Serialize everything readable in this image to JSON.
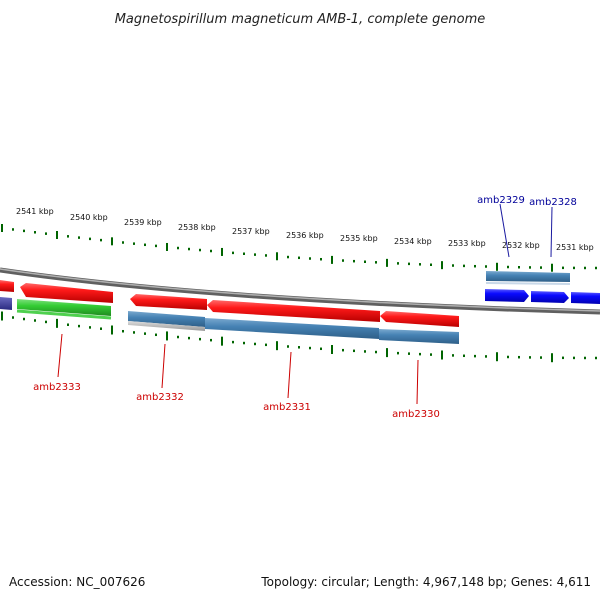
{
  "title": "Magnetospirillum magneticum AMB-1, complete genome",
  "ruler_labels": [
    "2541 kbp",
    "2540 kbp",
    "2539 kbp",
    "2538 kbp",
    "2537 kbp",
    "2536 kbp",
    "2535 kbp",
    "2534 kbp",
    "2533 kbp",
    "2532 kbp",
    "2531 kbp"
  ],
  "genes_reverse": [
    {
      "label": "amb2333",
      "color": "#cc0000"
    },
    {
      "label": "amb2332",
      "color": "#cc0000"
    },
    {
      "label": "amb2331",
      "color": "#cc0000"
    },
    {
      "label": "amb2330",
      "color": "#cc0000"
    }
  ],
  "genes_forward": [
    {
      "label": "amb2329",
      "color": "#000099"
    },
    {
      "label": "amb2328",
      "color": "#000099"
    }
  ],
  "colors": {
    "cds_forward": "#0000ff",
    "cds_reverse": "#ff0000",
    "gene_track": "#4682b4",
    "other_track": "#33cc33",
    "backbone": "#808080",
    "ruler_ticks": "#006400"
  },
  "footer": {
    "accession": "Accession: NC_007626",
    "summary": "Topology: circular; Length: 4,967,148 bp; Genes: 4,611"
  }
}
